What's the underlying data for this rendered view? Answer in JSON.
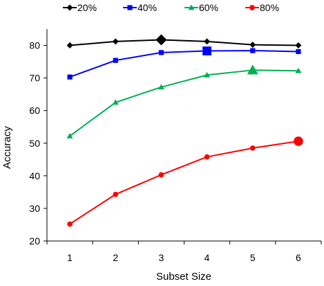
{
  "chart_data": {
    "type": "line",
    "x": [
      1,
      2,
      3,
      4,
      5,
      6
    ],
    "xlabel": "Subset Size",
    "ylabel": "Accuracy",
    "xlim": [
      0.5,
      6.5
    ],
    "ylim": [
      20,
      85
    ],
    "y_ticks": [
      20,
      30,
      40,
      50,
      60,
      70,
      80
    ],
    "x_ticks": [
      1,
      2,
      3,
      4,
      5,
      6
    ],
    "grid": false,
    "legend_position": "top",
    "series": [
      {
        "name": "20%",
        "color": "#000000",
        "marker": "diamond",
        "values": [
          80.0,
          81.2,
          81.7,
          81.2,
          80.2,
          80.0
        ],
        "highlight_index": 2
      },
      {
        "name": "40%",
        "color": "#0000ff",
        "marker": "square",
        "values": [
          70.3,
          75.4,
          77.8,
          78.3,
          78.4,
          78.1
        ],
        "highlight_index": 3
      },
      {
        "name": "60%",
        "color": "#00b050",
        "marker": "triangle",
        "values": [
          52.2,
          62.5,
          67.2,
          70.9,
          72.4,
          72.2
        ],
        "highlight_index": 4
      },
      {
        "name": "80%",
        "color": "#ff0000",
        "marker": "circle",
        "values": [
          25.2,
          34.3,
          40.3,
          45.8,
          48.5,
          50.6
        ],
        "highlight_index": 5
      }
    ]
  }
}
